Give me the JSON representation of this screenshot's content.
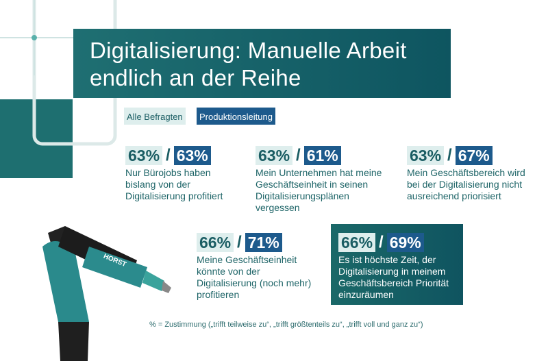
{
  "header": {
    "title": "Digitalisierung: Manuelle Arbeit endlich an der Reihe"
  },
  "legend": [
    "Alle Befragten",
    "Produktionsleitung"
  ],
  "separator": "/",
  "stats": [
    {
      "all": "63%",
      "prod": "63%",
      "text": "Nur Bürojobs haben bislang von der Digitalisierung profitiert"
    },
    {
      "all": "63%",
      "prod": "61%",
      "text": "Mein Unternehmen hat meine Geschäftseinheit in seinen Digitalisierungsplänen vergessen"
    },
    {
      "all": "63%",
      "prod": "67%",
      "text": "Mein Geschäftsbereich wird bei der Digitalisierung nicht ausreichend priorisiert"
    },
    {
      "all": "66%",
      "prod": "71%",
      "text": "Meine Geschäftseinheit könnte von der Digitalisierung (noch mehr) profitieren"
    },
    {
      "all": "66%",
      "prod": "69%",
      "text": "Es ist höchste Zeit, der Digitalisierung in meinem Geschäftsbereich Priorität einzuräumen"
    }
  ],
  "robot_label": "HORST",
  "footnote": "% = Zustimmung („trifft teilweise zu“, „trifft größtenteils zu“, „trifft voll und ganz zu“)"
}
